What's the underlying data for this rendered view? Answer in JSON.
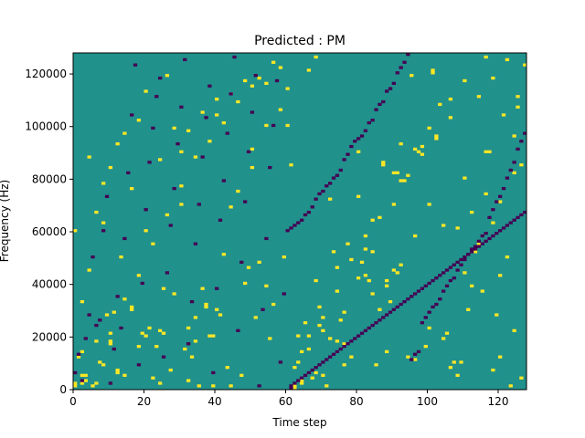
{
  "colors": {
    "background": "#21918c",
    "low": "#440154",
    "high": "#fde725",
    "axis": "#000000"
  },
  "chart_data": {
    "type": "heatmap",
    "title": "Predicted : PM",
    "xlabel": "Time step",
    "ylabel": "Frequency (Hz)",
    "xlim": [
      0,
      128
    ],
    "ylim": [
      0,
      128000
    ],
    "x_ticks": [
      0,
      20,
      40,
      60,
      80,
      100,
      120
    ],
    "y_ticks": [
      0,
      20000,
      40000,
      60000,
      80000,
      100000,
      120000
    ],
    "x_tick_labels": [
      "0",
      "20",
      "40",
      "60",
      "80",
      "100",
      "120"
    ],
    "y_tick_labels": [
      "0",
      "20000",
      "40000",
      "60000",
      "80000",
      "100000",
      "120000"
    ],
    "rows": 128,
    "cols": 128,
    "background_value": 0,
    "value_range": [
      -1,
      1
    ],
    "high_cells": [
      [
        0,
        2
      ],
      [
        0,
        1
      ],
      [
        1,
        12
      ],
      [
        2,
        2
      ],
      [
        2,
        5
      ],
      [
        3,
        3
      ],
      [
        3,
        5
      ],
      [
        5,
        1
      ],
      [
        6,
        18
      ],
      [
        7,
        10
      ],
      [
        8,
        9
      ],
      [
        9,
        28
      ],
      [
        10,
        17
      ],
      [
        10,
        18
      ],
      [
        11,
        29
      ],
      [
        12,
        7
      ],
      [
        12,
        6
      ],
      [
        13,
        50
      ],
      [
        14,
        5
      ],
      [
        16,
        30
      ],
      [
        16,
        31
      ],
      [
        18,
        16
      ],
      [
        19,
        21
      ],
      [
        20,
        20
      ],
      [
        21,
        23
      ],
      [
        22,
        4
      ],
      [
        23,
        16
      ],
      [
        24,
        2
      ],
      [
        24,
        22
      ],
      [
        25,
        21
      ],
      [
        25,
        38
      ],
      [
        27,
        7
      ],
      [
        28,
        36
      ],
      [
        30,
        70
      ],
      [
        31,
        15
      ],
      [
        32,
        23
      ],
      [
        33,
        12
      ],
      [
        34,
        18
      ],
      [
        35,
        1
      ],
      [
        37,
        31
      ],
      [
        37,
        32
      ],
      [
        38,
        20
      ],
      [
        39,
        1
      ],
      [
        39,
        20
      ],
      [
        40,
        30
      ],
      [
        41,
        28
      ],
      [
        43,
        8
      ],
      [
        44,
        1
      ],
      [
        47,
        5
      ],
      [
        48,
        40
      ],
      [
        49,
        46
      ],
      [
        50,
        84
      ],
      [
        51,
        27
      ],
      [
        52,
        48
      ],
      [
        54,
        39
      ],
      [
        55,
        19
      ],
      [
        56,
        32
      ],
      [
        59,
        50
      ],
      [
        61,
        85
      ],
      [
        62,
        0
      ],
      [
        62,
        1
      ],
      [
        63,
        10
      ],
      [
        63,
        20
      ],
      [
        64,
        2
      ],
      [
        64,
        14
      ],
      [
        65,
        25
      ],
      [
        66,
        20
      ],
      [
        67,
        4
      ],
      [
        68,
        41
      ],
      [
        69,
        31
      ],
      [
        69,
        24
      ],
      [
        70,
        22
      ],
      [
        71,
        1
      ],
      [
        72,
        72
      ],
      [
        73,
        52
      ],
      [
        74,
        46
      ],
      [
        75,
        26
      ],
      [
        76,
        17
      ],
      [
        77,
        55
      ],
      [
        78,
        12
      ],
      [
        80,
        73
      ],
      [
        81,
        48
      ],
      [
        82,
        43
      ],
      [
        83,
        41
      ],
      [
        84,
        52
      ],
      [
        85,
        9
      ],
      [
        86,
        30
      ],
      [
        87,
        85
      ],
      [
        87,
        86
      ],
      [
        88,
        14
      ],
      [
        88,
        41
      ],
      [
        89,
        33
      ],
      [
        90,
        82
      ],
      [
        91,
        44
      ],
      [
        91,
        82
      ],
      [
        92,
        93
      ],
      [
        93,
        79
      ],
      [
        94,
        12
      ],
      [
        95,
        119
      ],
      [
        96,
        11
      ],
      [
        97,
        90
      ],
      [
        98,
        92
      ],
      [
        99,
        16
      ],
      [
        100,
        23
      ],
      [
        101,
        120
      ],
      [
        101,
        121
      ],
      [
        102,
        95
      ],
      [
        103,
        108
      ],
      [
        104,
        19
      ],
      [
        105,
        21
      ],
      [
        106,
        8
      ],
      [
        107,
        10
      ],
      [
        108,
        5
      ],
      [
        109,
        10
      ],
      [
        110,
        44
      ],
      [
        111,
        30
      ],
      [
        112,
        39
      ],
      [
        113,
        52
      ],
      [
        114,
        55
      ],
      [
        115,
        37
      ],
      [
        116,
        90
      ],
      [
        117,
        90
      ],
      [
        118,
        63
      ],
      [
        119,
        28
      ],
      [
        120,
        43
      ],
      [
        121,
        104
      ],
      [
        122,
        50
      ],
      [
        123,
        1
      ],
      [
        124,
        82
      ],
      [
        125,
        107
      ],
      [
        125,
        111
      ],
      [
        126,
        85
      ],
      [
        127,
        123
      ],
      [
        120,
        12
      ],
      [
        80,
        90
      ],
      [
        60,
        100
      ],
      [
        40,
        110
      ],
      [
        20,
        60
      ],
      [
        100,
        70
      ],
      [
        110,
        80
      ],
      [
        30,
        90
      ],
      [
        50,
        115
      ],
      [
        70,
        5
      ],
      [
        90,
        45
      ],
      [
        0,
        60
      ],
      [
        8,
        63
      ],
      [
        16,
        76
      ],
      [
        24,
        87
      ],
      [
        32,
        98
      ],
      [
        40,
        104
      ],
      [
        48,
        117
      ],
      [
        56,
        124
      ],
      [
        64,
        3
      ],
      [
        72,
        19
      ],
      [
        88,
        39
      ],
      [
        96,
        58
      ],
      [
        104,
        62
      ],
      [
        112,
        67
      ],
      [
        120,
        71
      ],
      [
        4,
        88
      ],
      [
        12,
        93
      ],
      [
        28,
        99
      ],
      [
        36,
        105
      ],
      [
        44,
        112
      ],
      [
        52,
        118
      ],
      [
        68,
        126
      ],
      [
        76,
        9
      ],
      [
        84,
        36
      ],
      [
        92,
        47
      ],
      [
        108,
        61
      ],
      [
        116,
        74
      ],
      [
        124,
        96
      ],
      [
        6,
        2
      ],
      [
        10,
        21
      ],
      [
        14,
        34
      ],
      [
        18,
        43
      ],
      [
        22,
        55
      ],
      [
        26,
        66
      ],
      [
        30,
        77
      ],
      [
        34,
        88
      ],
      [
        38,
        94
      ],
      [
        42,
        101
      ],
      [
        46,
        109
      ],
      [
        54,
        116
      ],
      [
        58,
        122
      ],
      [
        62,
        8
      ],
      [
        66,
        15
      ],
      [
        70,
        27
      ],
      [
        74,
        37
      ],
      [
        78,
        49
      ],
      [
        82,
        58
      ],
      [
        86,
        65
      ],
      [
        94,
        81
      ],
      [
        98,
        89
      ],
      [
        102,
        96
      ],
      [
        106,
        103
      ],
      [
        114,
        111
      ],
      [
        118,
        118
      ],
      [
        122,
        125
      ],
      [
        126,
        4
      ],
      [
        2,
        14
      ],
      [
        2,
        33
      ],
      [
        4,
        45
      ],
      [
        6,
        67
      ],
      [
        8,
        78
      ],
      [
        10,
        84
      ],
      [
        14,
        97
      ],
      [
        18,
        102
      ],
      [
        20,
        113
      ],
      [
        26,
        119
      ],
      [
        32,
        3
      ],
      [
        34,
        27
      ],
      [
        36,
        38
      ],
      [
        42,
        51
      ],
      [
        44,
        69
      ],
      [
        46,
        75
      ],
      [
        50,
        91
      ],
      [
        54,
        100
      ],
      [
        58,
        106
      ],
      [
        60,
        114
      ],
      [
        66,
        121
      ],
      [
        68,
        6
      ],
      [
        74,
        18
      ],
      [
        76,
        29
      ],
      [
        80,
        42
      ],
      [
        82,
        53
      ],
      [
        84,
        64
      ],
      [
        90,
        70
      ],
      [
        92,
        79
      ],
      [
        96,
        91
      ],
      [
        100,
        99
      ],
      [
        106,
        110
      ],
      [
        110,
        117
      ],
      [
        116,
        126
      ],
      [
        118,
        7
      ],
      [
        124,
        22
      ]
    ],
    "low_cells": [
      [
        0,
        6
      ],
      [
        1,
        13
      ],
      [
        2,
        3
      ],
      [
        3,
        19
      ],
      [
        4,
        28
      ],
      [
        5,
        50
      ],
      [
        6,
        24
      ],
      [
        7,
        26
      ],
      [
        8,
        60
      ],
      [
        9,
        73
      ],
      [
        10,
        2
      ],
      [
        11,
        15
      ],
      [
        12,
        35
      ],
      [
        13,
        23
      ],
      [
        14,
        57
      ],
      [
        15,
        82
      ],
      [
        16,
        104
      ],
      [
        17,
        123
      ],
      [
        18,
        9
      ],
      [
        19,
        40
      ],
      [
        20,
        68
      ],
      [
        21,
        86
      ],
      [
        22,
        99
      ],
      [
        23,
        111
      ],
      [
        24,
        118
      ],
      [
        25,
        12
      ],
      [
        26,
        44
      ],
      [
        27,
        62
      ],
      [
        28,
        76
      ],
      [
        29,
        93
      ],
      [
        30,
        107
      ],
      [
        31,
        125
      ],
      [
        32,
        17
      ],
      [
        33,
        33
      ],
      [
        34,
        55
      ],
      [
        35,
        70
      ],
      [
        36,
        88
      ],
      [
        37,
        103
      ],
      [
        38,
        115
      ],
      [
        39,
        6
      ],
      [
        40,
        38
      ],
      [
        41,
        64
      ],
      [
        42,
        79
      ],
      [
        43,
        97
      ],
      [
        44,
        112
      ],
      [
        45,
        126
      ],
      [
        46,
        22
      ],
      [
        47,
        48
      ],
      [
        48,
        71
      ],
      [
        49,
        90
      ],
      [
        50,
        105
      ],
      [
        51,
        119
      ],
      [
        52,
        1
      ],
      [
        53,
        30
      ],
      [
        54,
        57
      ],
      [
        55,
        84
      ],
      [
        56,
        100
      ],
      [
        57,
        117
      ],
      [
        58,
        10
      ],
      [
        59,
        36
      ],
      [
        60,
        60
      ],
      [
        61,
        61
      ],
      [
        62,
        62
      ],
      [
        63,
        63
      ],
      [
        64,
        64
      ],
      [
        65,
        66
      ],
      [
        66,
        67
      ],
      [
        67,
        69
      ],
      [
        68,
        72
      ],
      [
        69,
        74
      ],
      [
        70,
        75
      ],
      [
        71,
        77
      ],
      [
        72,
        78
      ],
      [
        73,
        80
      ],
      [
        74,
        81
      ],
      [
        75,
        83
      ],
      [
        76,
        87
      ],
      [
        77,
        89
      ],
      [
        78,
        92
      ],
      [
        79,
        94
      ],
      [
        80,
        95
      ],
      [
        81,
        96
      ],
      [
        82,
        98
      ],
      [
        83,
        101
      ],
      [
        84,
        102
      ],
      [
        85,
        106
      ],
      [
        86,
        108
      ],
      [
        87,
        109
      ],
      [
        88,
        113
      ],
      [
        89,
        114
      ],
      [
        90,
        116
      ],
      [
        91,
        120
      ],
      [
        92,
        122
      ],
      [
        93,
        124
      ],
      [
        94,
        127
      ],
      [
        95,
        11
      ],
      [
        96,
        13
      ],
      [
        97,
        14
      ],
      [
        98,
        25
      ],
      [
        99,
        27
      ],
      [
        100,
        29
      ],
      [
        101,
        31
      ],
      [
        102,
        32
      ],
      [
        103,
        34
      ],
      [
        104,
        37
      ],
      [
        105,
        39
      ],
      [
        106,
        41
      ],
      [
        107,
        42
      ],
      [
        108,
        45
      ],
      [
        109,
        47
      ],
      [
        110,
        49
      ],
      [
        111,
        51
      ],
      [
        112,
        53
      ],
      [
        113,
        54
      ],
      [
        114,
        56
      ],
      [
        115,
        58
      ],
      [
        116,
        59
      ],
      [
        117,
        65
      ],
      [
        118,
        68
      ],
      [
        119,
        71
      ],
      [
        120,
        73
      ],
      [
        121,
        76
      ],
      [
        122,
        80
      ],
      [
        123,
        83
      ],
      [
        124,
        86
      ],
      [
        125,
        91
      ],
      [
        126,
        94
      ],
      [
        127,
        97
      ],
      [
        61,
        0
      ],
      [
        61,
        1
      ],
      [
        62,
        2
      ],
      [
        63,
        3
      ],
      [
        64,
        4
      ],
      [
        65,
        5
      ],
      [
        66,
        6
      ],
      [
        67,
        7
      ],
      [
        68,
        8
      ],
      [
        69,
        9
      ],
      [
        70,
        10
      ],
      [
        71,
        11
      ],
      [
        72,
        12
      ],
      [
        73,
        13
      ],
      [
        74,
        14
      ],
      [
        75,
        15
      ],
      [
        76,
        16
      ],
      [
        77,
        17
      ],
      [
        78,
        18
      ],
      [
        79,
        19
      ],
      [
        80,
        20
      ],
      [
        81,
        21
      ],
      [
        82,
        22
      ],
      [
        83,
        23
      ],
      [
        84,
        24
      ],
      [
        85,
        25
      ],
      [
        86,
        26
      ],
      [
        87,
        27
      ],
      [
        88,
        28
      ],
      [
        89,
        29
      ],
      [
        90,
        30
      ],
      [
        91,
        31
      ],
      [
        92,
        32
      ],
      [
        93,
        33
      ],
      [
        94,
        34
      ],
      [
        95,
        35
      ],
      [
        96,
        36
      ],
      [
        97,
        37
      ],
      [
        98,
        38
      ],
      [
        99,
        39
      ],
      [
        100,
        40
      ],
      [
        101,
        41
      ],
      [
        102,
        42
      ],
      [
        103,
        43
      ],
      [
        104,
        44
      ],
      [
        105,
        45
      ],
      [
        106,
        46
      ],
      [
        107,
        47
      ],
      [
        108,
        48
      ],
      [
        109,
        49
      ],
      [
        110,
        50
      ],
      [
        111,
        51
      ],
      [
        112,
        52
      ],
      [
        113,
        53
      ],
      [
        114,
        54
      ],
      [
        115,
        55
      ],
      [
        116,
        56
      ],
      [
        117,
        57
      ],
      [
        118,
        58
      ],
      [
        119,
        59
      ],
      [
        120,
        60
      ],
      [
        121,
        61
      ],
      [
        122,
        62
      ],
      [
        123,
        63
      ],
      [
        124,
        64
      ],
      [
        125,
        65
      ],
      [
        126,
        66
      ],
      [
        127,
        67
      ]
    ]
  }
}
